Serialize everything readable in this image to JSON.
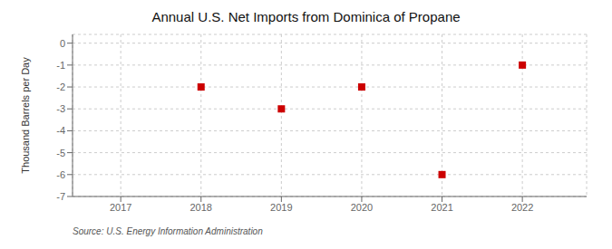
{
  "chart_data": {
    "type": "scatter",
    "title": "Annual U.S. Net Imports from Dominica of Propane",
    "ylabel": "Thousand Barrels per Day",
    "annotations": [
      "Source: U.S. Energy Information Administration"
    ],
    "x": [
      2017,
      2018,
      2019,
      2020,
      2021,
      2022
    ],
    "values": [
      null,
      -2,
      -3,
      -2,
      -6,
      -1
    ],
    "color": "#cc0000",
    "marker": "square",
    "xlim": [
      2016.4,
      2022.8
    ],
    "ylim": [
      -7,
      0.4
    ],
    "xticks": [
      2017,
      2018,
      2019,
      2020,
      2021,
      2022
    ],
    "yticks": [
      0,
      -1,
      -2,
      -3,
      -4,
      -5,
      -6,
      -7
    ],
    "grid": true
  }
}
